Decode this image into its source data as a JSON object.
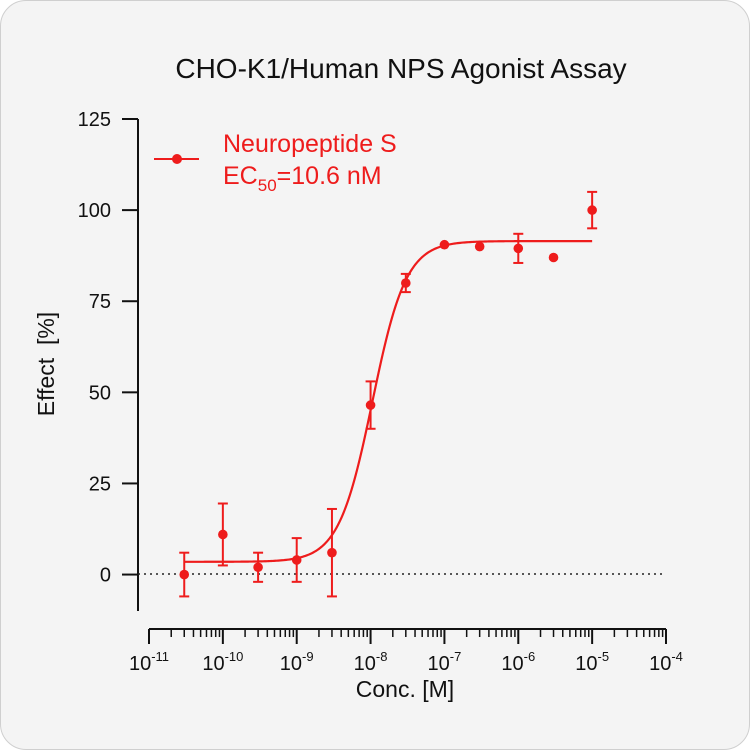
{
  "chart_data": {
    "type": "scatter",
    "title": "CHO-K1/Human NPS Agonist Assay",
    "xlabel": "Conc. [M]",
    "ylabel": "Effect  [%]",
    "x_scale": "log",
    "xlim": [
      1e-11,
      0.0001
    ],
    "ylim": [
      -10,
      125
    ],
    "yticks": [
      0,
      25,
      50,
      75,
      100,
      125
    ],
    "xticks": [
      {
        "value": 1e-11,
        "base": "10",
        "exp": "-11"
      },
      {
        "value": 1e-10,
        "base": "10",
        "exp": "-10"
      },
      {
        "value": 1e-09,
        "base": "10",
        "exp": "-9"
      },
      {
        "value": 1e-08,
        "base": "10",
        "exp": "-8"
      },
      {
        "value": 1e-07,
        "base": "10",
        "exp": "-7"
      },
      {
        "value": 1e-06,
        "base": "10",
        "exp": "-6"
      },
      {
        "value": 1e-05,
        "base": "10",
        "exp": "-5"
      },
      {
        "value": 0.0001,
        "base": "10",
        "exp": "-4"
      }
    ],
    "zero_reference_line": true,
    "grid": false,
    "legend_position": "top-left",
    "series": [
      {
        "name": "Neuropeptide S",
        "color": "#ee1c1c",
        "x": [
          3e-11,
          1e-10,
          3e-10,
          1e-09,
          3e-09,
          1e-08,
          3e-08,
          1e-07,
          3e-07,
          1e-06,
          3e-06,
          1e-05
        ],
        "y": [
          0,
          11,
          2,
          4,
          6,
          46.5,
          80,
          90.5,
          90,
          89.5,
          87,
          100
        ],
        "yerr": [
          6,
          8.5,
          4,
          6,
          12,
          6.5,
          2.5,
          0,
          0,
          4,
          0,
          5
        ],
        "fit": {
          "bottom": 3.5,
          "top": 91.5,
          "ec50": 1.06e-08,
          "hill": 1.9,
          "x_range": [
            3e-11,
            1e-05
          ]
        }
      }
    ],
    "legend": {
      "label": "Neuropeptide S",
      "ec50_prefix": "EC",
      "ec50_subscript": "50",
      "ec50_value": "=10.6 nM"
    }
  }
}
